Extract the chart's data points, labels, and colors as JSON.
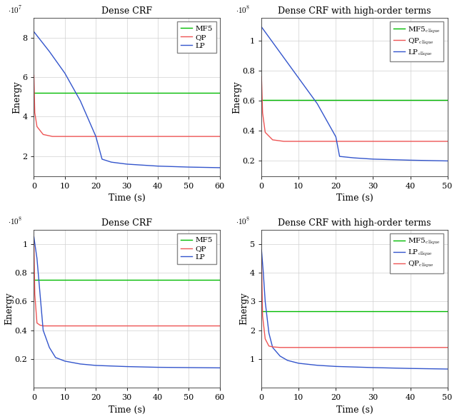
{
  "panels": [
    {
      "title": "Dense CRF",
      "xlabel": "Time (s)",
      "ylabel": "Energy",
      "xlim": [
        0,
        60
      ],
      "ylim": [
        10000000.0,
        90000000.0
      ],
      "yticks": [
        20000000.0,
        40000000.0,
        60000000.0,
        80000000.0
      ],
      "yticklabels": [
        "2",
        "4",
        "6",
        "8"
      ],
      "xticks": [
        0,
        10,
        20,
        30,
        40,
        50,
        60
      ],
      "scale": 10000000.0,
      "scale_label": "$\\cdot 10^7$",
      "series": [
        {
          "label": "MF5",
          "color": "#00bb00",
          "x": [
            0,
            60
          ],
          "y": [
            52000000.0,
            52000000.0
          ]
        },
        {
          "label": "QP",
          "color": "#ee5555",
          "x": [
            0,
            0.3,
            1,
            3,
            6,
            10,
            60
          ],
          "y": [
            61000000.0,
            42000000.0,
            35000000.0,
            31000000.0,
            30000000.0,
            30000000.0,
            30000000.0
          ]
        },
        {
          "label": "LP",
          "color": "#3355cc",
          "x": [
            0,
            5,
            10,
            15,
            20,
            22,
            25,
            30,
            40,
            50,
            60
          ],
          "y": [
            83000000.0,
            73000000.0,
            62000000.0,
            48000000.0,
            30000000.0,
            18500000.0,
            17000000.0,
            16000000.0,
            15000000.0,
            14500000.0,
            14200000.0
          ]
        }
      ],
      "legend_order": [
        0,
        1,
        2
      ]
    },
    {
      "title": "Dense CRF with high-order terms",
      "xlabel": "Time (s)",
      "ylabel": "Energy",
      "xlim": [
        0,
        50
      ],
      "ylim": [
        10000000.0,
        115000000.0
      ],
      "yticks": [
        20000000.0,
        40000000.0,
        60000000.0,
        80000000.0,
        100000000.0
      ],
      "yticklabels": [
        "0.2",
        "0.4",
        "0.6",
        "0.8",
        "1"
      ],
      "xticks": [
        0,
        10,
        20,
        30,
        40,
        50
      ],
      "scale": 100000000.0,
      "scale_label": "$\\cdot 10^8$",
      "series": [
        {
          "label": "MF5$_{\\mathrm{clique}}$",
          "color": "#00bb00",
          "x": [
            0,
            50
          ],
          "y": [
            60500000.0,
            60500000.0
          ]
        },
        {
          "label": "QP$_{\\mathrm{clique}}$",
          "color": "#ee5555",
          "x": [
            0,
            0.3,
            1,
            3,
            6,
            10,
            15,
            50
          ],
          "y": [
            76000000.0,
            52000000.0,
            39000000.0,
            34000000.0,
            33000000.0,
            33000000.0,
            33000000.0,
            33000000.0
          ]
        },
        {
          "label": "LP$_{\\mathrm{clique}}$",
          "color": "#3355cc",
          "x": [
            0,
            5,
            10,
            15,
            20,
            21,
            25,
            30,
            40,
            50
          ],
          "y": [
            109000000.0,
            92000000.0,
            75000000.0,
            58000000.0,
            36000000.0,
            23000000.0,
            22000000.0,
            21200000.0,
            20500000.0,
            20000000.0
          ]
        }
      ],
      "legend_order": [
        0,
        1,
        2
      ]
    },
    {
      "title": "Dense CRF",
      "xlabel": "Time (s)",
      "ylabel": "Energy",
      "xlim": [
        0,
        60
      ],
      "ylim": [
        0,
        110000000.0
      ],
      "yticks": [
        20000000.0,
        40000000.0,
        60000000.0,
        80000000.0,
        100000000.0
      ],
      "yticklabels": [
        "0.2",
        "0.4",
        "0.6",
        "0.8",
        "1"
      ],
      "xticks": [
        0,
        10,
        20,
        30,
        40,
        50,
        60
      ],
      "scale": 100000000.0,
      "scale_label": "$\\cdot 10^8$",
      "series": [
        {
          "label": "MF5",
          "color": "#00bb00",
          "x": [
            0,
            60
          ],
          "y": [
            75000000.0,
            75000000.0
          ]
        },
        {
          "label": "QP",
          "color": "#ee5555",
          "x": [
            0,
            0.3,
            1,
            2,
            3,
            5,
            60
          ],
          "y": [
            102000000.0,
            65000000.0,
            45000000.0,
            43500000.0,
            43000000.0,
            43000000.0,
            43000000.0
          ]
        },
        {
          "label": "LP",
          "color": "#3355cc",
          "x": [
            0,
            1,
            2,
            3,
            5,
            7,
            10,
            15,
            20,
            30,
            40,
            60
          ],
          "y": [
            105000000.0,
            90000000.0,
            65000000.0,
            40000000.0,
            28000000.0,
            21000000.0,
            18500000.0,
            16500000.0,
            15500000.0,
            14700000.0,
            14200000.0,
            13800000.0
          ]
        }
      ],
      "legend_order": [
        0,
        1,
        2
      ]
    },
    {
      "title": "Dense CRF with high-order terms",
      "xlabel": "Time (s)",
      "ylabel": "Energy",
      "xlim": [
        0,
        50
      ],
      "ylim": [
        0,
        550000000.0
      ],
      "yticks": [
        100000000.0,
        200000000.0,
        300000000.0,
        400000000.0,
        500000000.0
      ],
      "yticklabels": [
        "1",
        "2",
        "3",
        "4",
        "5"
      ],
      "xticks": [
        0,
        10,
        20,
        30,
        40,
        50
      ],
      "scale": 100000000.0,
      "scale_label": "$\\cdot 10^8$",
      "series": [
        {
          "label": "MF5$_{\\mathrm{clique}}$",
          "color": "#00bb00",
          "x": [
            0,
            50
          ],
          "y": [
            265000000.0,
            265000000.0
          ]
        },
        {
          "label": "LP$_{\\mathrm{clique}}$",
          "color": "#3355cc",
          "x": [
            0,
            0.5,
            1,
            2,
            3,
            5,
            7,
            10,
            15,
            20,
            30,
            40,
            50
          ],
          "y": [
            480000000.0,
            400000000.0,
            300000000.0,
            190000000.0,
            140000000.0,
            110000000.0,
            95000000.0,
            85000000.0,
            78000000.0,
            74000000.0,
            70000000.0,
            67000000.0,
            65000000.0
          ]
        },
        {
          "label": "QP$_{\\mathrm{clique}}$",
          "color": "#ee5555",
          "x": [
            0,
            0.3,
            1,
            2,
            3,
            5,
            7,
            50
          ],
          "y": [
            450000000.0,
            250000000.0,
            170000000.0,
            145000000.0,
            142000000.0,
            140000000.0,
            140000000.0,
            140000000.0
          ]
        }
      ],
      "legend_order": [
        0,
        1,
        2
      ]
    }
  ]
}
